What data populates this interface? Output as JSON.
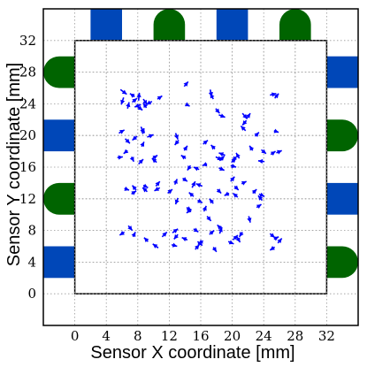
{
  "chart_data": {
    "type": "scatter",
    "xlabel": "Sensor X coordinate [mm]",
    "ylabel": "Sensor Y coordinate [mm]",
    "xlim": [
      -4,
      36
    ],
    "ylim": [
      -4,
      36
    ],
    "xticks": [
      "0",
      "4",
      "8",
      "12",
      "16",
      "20",
      "24",
      "28",
      "32"
    ],
    "yticks": [
      "0",
      "4",
      "8",
      "12",
      "16",
      "20",
      "24",
      "28",
      "32"
    ],
    "tick_values": [
      0,
      4,
      8,
      12,
      16,
      20,
      24,
      28,
      32
    ],
    "grid": true,
    "sensor_area": {
      "x": [
        0,
        32
      ],
      "y": [
        0,
        32
      ]
    },
    "colors": {
      "electrode_blue": "#0047b8",
      "electrode_green": "#006400",
      "vector": "#0000ff"
    },
    "electrodes": [
      {
        "side": "top",
        "shape": "square",
        "center": 4,
        "color": "blue"
      },
      {
        "side": "top",
        "shape": "rounded",
        "center": 12,
        "color": "green"
      },
      {
        "side": "top",
        "shape": "square",
        "center": 20,
        "color": "blue"
      },
      {
        "side": "top",
        "shape": "rounded",
        "center": 28,
        "color": "green"
      },
      {
        "side": "left",
        "shape": "rounded",
        "center": 28,
        "color": "green"
      },
      {
        "side": "left",
        "shape": "square",
        "center": 20,
        "color": "blue"
      },
      {
        "side": "left",
        "shape": "rounded",
        "center": 12,
        "color": "green"
      },
      {
        "side": "left",
        "shape": "square",
        "center": 4,
        "color": "blue"
      },
      {
        "side": "right",
        "shape": "square",
        "center": 28,
        "color": "blue"
      },
      {
        "side": "right",
        "shape": "rounded",
        "center": 20,
        "color": "green"
      },
      {
        "side": "right",
        "shape": "square",
        "center": 12,
        "color": "blue"
      },
      {
        "side": "right",
        "shape": "rounded",
        "center": 4,
        "color": "green"
      }
    ],
    "series": [
      {
        "points": [
          [
            5.8,
            25.8,
            0.8,
            -0.6
          ],
          [
            6.2,
            24.8,
            -0.3,
            -0.9
          ],
          [
            6.7,
            23.4,
            0.2,
            0.8
          ],
          [
            7.3,
            24.2,
            0.6,
            0.5
          ],
          [
            7.6,
            24.9,
            -0.6,
            0.4
          ],
          [
            7.9,
            23.7,
            0.7,
            -0.5
          ],
          [
            8.1,
            24.4,
            0.1,
            1.0
          ],
          [
            8.4,
            23.9,
            -0.8,
            -0.3
          ],
          [
            8.7,
            24.6,
            0.5,
            -0.7
          ],
          [
            9.1,
            23.5,
            -0.4,
            0.6
          ],
          [
            9.8,
            24.3,
            -0.7,
            -0.4
          ],
          [
            10.5,
            24.6,
            0.6,
            0.4
          ],
          [
            13.9,
            26.2,
            0.5,
            0.6
          ],
          [
            14.2,
            23.9,
            0.4,
            -0.2
          ],
          [
            17.2,
            25.8,
            0.2,
            -0.9
          ],
          [
            17.6,
            24.6,
            -0.4,
            0.7
          ],
          [
            17.9,
            23.4,
            0.5,
            -0.6
          ],
          [
            18.3,
            22.6,
            0.8,
            -0.3
          ],
          [
            21.3,
            22.8,
            0.6,
            -0.7
          ],
          [
            21.8,
            21.9,
            -0.5,
            -0.6
          ],
          [
            24.8,
            25.1,
            0.8,
            0.2
          ],
          [
            25.4,
            24.7,
            0.5,
            0.6
          ],
          [
            5.6,
            20.3,
            0.7,
            0.4
          ],
          [
            6.4,
            19.6,
            0.6,
            -0.6
          ],
          [
            6.7,
            18.1,
            -0.5,
            -0.4
          ],
          [
            7.9,
            19.9,
            -0.6,
            -0.5
          ],
          [
            8.4,
            21.1,
            0.4,
            -0.8
          ],
          [
            8.6,
            20.2,
            0.2,
            0.7
          ],
          [
            9.2,
            19.8,
            0.8,
            0.3
          ],
          [
            8.5,
            18.6,
            0.3,
            0.6
          ],
          [
            5.4,
            17.2,
            0.7,
            0.1
          ],
          [
            7.2,
            17.3,
            0.3,
            -0.6
          ],
          [
            8.1,
            16.4,
            0.6,
            0.6
          ],
          [
            9.9,
            17.1,
            0.6,
            0.4
          ],
          [
            10.4,
            16.6,
            -0.6,
            0.5
          ],
          [
            12.8,
            20.3,
            0.3,
            -0.8
          ],
          [
            13.2,
            19.4,
            -0.5,
            -0.6
          ],
          [
            13.9,
            18.1,
            0.4,
            0.6
          ],
          [
            14.1,
            17.1,
            -0.6,
            0.4
          ],
          [
            14.7,
            16.2,
            -0.4,
            -0.6
          ],
          [
            16.3,
            18.9,
            0.6,
            0.5
          ],
          [
            17.8,
            18.3,
            -0.5,
            0.5
          ],
          [
            17.9,
            17.3,
            0.8,
            -0.4
          ],
          [
            18.4,
            16.8,
            0.6,
            0.6
          ],
          [
            16.8,
            16.4,
            -0.6,
            -0.2
          ],
          [
            18.3,
            15.9,
            0.7,
            -0.3
          ],
          [
            19.1,
            17.5,
            -0.8,
            0.3
          ],
          [
            19.9,
            16.6,
            0.6,
            0.5
          ],
          [
            20.5,
            17.3,
            -0.5,
            -0.5
          ],
          [
            20.9,
            17.1,
            -0.4,
            0.7
          ],
          [
            19.8,
            16.2,
            0.7,
            -0.2
          ],
          [
            15.8,
            15.7,
            -0.7,
            0.3
          ],
          [
            21.7,
            20.6,
            -0.6,
            0.6
          ],
          [
            22.9,
            19.9,
            0.5,
            0.5
          ],
          [
            22.6,
            18.1,
            -0.4,
            0.6
          ],
          [
            23.7,
            18.2,
            0.6,
            -0.5
          ],
          [
            24.1,
            16.7,
            -0.8,
            0.1
          ],
          [
            24.9,
            17.6,
            0.6,
            0.4
          ],
          [
            25.3,
            20.6,
            0.6,
            -0.2
          ],
          [
            25.6,
            17.8,
            0.7,
            0.3
          ],
          [
            21.8,
            22.1,
            0.5,
            0.7
          ],
          [
            6.3,
            13.3,
            0.6,
            -0.2
          ],
          [
            7.2,
            12.6,
            0.6,
            0.4
          ],
          [
            7.8,
            13.1,
            -0.5,
            0.6
          ],
          [
            8.7,
            13.7,
            0.6,
            -0.3
          ],
          [
            9.2,
            12.9,
            -0.6,
            0.5
          ],
          [
            10.3,
            13.6,
            0.5,
            0.6
          ],
          [
            10.8,
            13.4,
            -0.7,
            -0.4
          ],
          [
            11.8,
            12.7,
            0.6,
            0.5
          ],
          [
            12.7,
            13.8,
            0.3,
            0.7
          ],
          [
            13.1,
            12.1,
            -0.3,
            -0.8
          ],
          [
            13.7,
            14.6,
            0.6,
            -0.4
          ],
          [
            14.9,
            13.4,
            0.4,
            0.8
          ],
          [
            15.1,
            12.3,
            -0.6,
            0.5
          ],
          [
            16.2,
            13.6,
            -0.8,
            0.3
          ],
          [
            14.2,
            10.9,
            0.6,
            -0.4
          ],
          [
            14.8,
            10.7,
            -0.6,
            -0.5
          ],
          [
            15.6,
            11.8,
            0.6,
            -0.3
          ],
          [
            16.4,
            10.4,
            0.3,
            0.7
          ],
          [
            16.8,
            9.8,
            0.5,
            -0.6
          ],
          [
            17.6,
            11.4,
            -0.5,
            0.6
          ],
          [
            18.1,
            13.2,
            0.5,
            -0.5
          ],
          [
            19.6,
            12.7,
            -0.6,
            -0.3
          ],
          [
            19.8,
            14.2,
            0.5,
            0.6
          ],
          [
            20.3,
            13.6,
            0.5,
            -0.5
          ],
          [
            20.7,
            12.2,
            -0.6,
            0.5
          ],
          [
            21.2,
            13.9,
            0.6,
            0.3
          ],
          [
            22.6,
            12.7,
            0.5,
            0.5
          ],
          [
            22.1,
            9.8,
            0.2,
            -0.8
          ],
          [
            23.1,
            10.9,
            0.6,
            0.4
          ],
          [
            23.8,
            11.8,
            -0.5,
            0.6
          ],
          [
            23.4,
            12.6,
            0.7,
            -0.3
          ],
          [
            6.3,
            7.8,
            -0.6,
            -0.4
          ],
          [
            7.4,
            7.2,
            0.3,
            0.6
          ],
          [
            6.8,
            8.6,
            0.5,
            -0.6
          ],
          [
            9.3,
            6.6,
            -0.5,
            0.5
          ],
          [
            10.6,
            5.8,
            -0.7,
            0.5
          ],
          [
            11.1,
            7.2,
            0.6,
            0.6
          ],
          [
            12.3,
            6.2,
            0.7,
            -0.2
          ],
          [
            12.4,
            7.7,
            0.7,
            0.5
          ],
          [
            13.1,
            7.5,
            -0.5,
            -0.6
          ],
          [
            14.3,
            6.8,
            -0.7,
            0.3
          ],
          [
            15.3,
            5.6,
            0.5,
            0.6
          ],
          [
            15.6,
            6.6,
            0.6,
            -0.5
          ],
          [
            15.1,
            8.2,
            0.6,
            -0.4
          ],
          [
            16.3,
            6.7,
            -0.6,
            -0.4
          ],
          [
            17.1,
            7.5,
            0.6,
            0.5
          ],
          [
            17.6,
            5.9,
            0.4,
            -0.6
          ],
          [
            18.4,
            7.6,
            0.3,
            0.8
          ],
          [
            18.6,
            8.2,
            -0.5,
            0.5
          ],
          [
            19.5,
            6.6,
            0.7,
            -0.3
          ],
          [
            20.1,
            6.8,
            0.6,
            0.6
          ],
          [
            20.6,
            7.2,
            0.4,
            -0.7
          ],
          [
            21.3,
            7.8,
            -0.4,
            -0.6
          ],
          [
            24.8,
            7.6,
            0.6,
            -0.5
          ],
          [
            25.3,
            6.9,
            0.6,
            0.3
          ],
          [
            25.8,
            6.4,
            0.5,
            0.6
          ],
          [
            25.4,
            5.9,
            -0.6,
            -0.4
          ]
        ]
      }
    ]
  }
}
